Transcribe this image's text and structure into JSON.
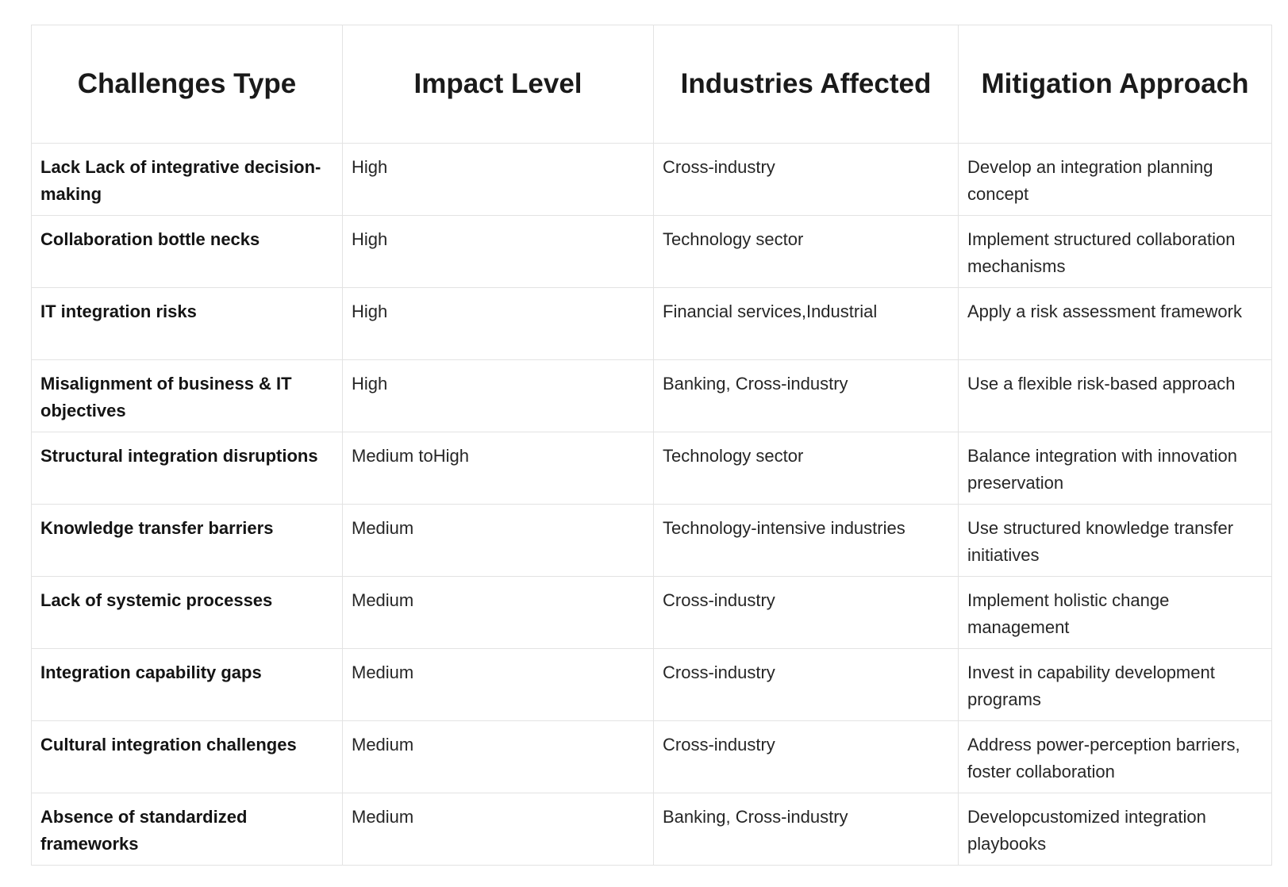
{
  "table": {
    "headers": [
      "Challenges Type",
      "Impact Level",
      "Industries Affected",
      "Mitigation Approach"
    ],
    "rows": [
      [
        "Lack Lack of integrative decision-making",
        "High",
        "Cross-industry",
        "Develop an integration planning concept"
      ],
      [
        "Collaboration bottle necks",
        "High",
        "Technology sector",
        "Implement structured collaboration mechanisms"
      ],
      [
        "IT integration risks",
        "High",
        "Financial services,Industrial",
        "Apply a risk assessment framework"
      ],
      [
        "Misalignment of business & IT objectives",
        "High",
        "Banking, Cross-industry",
        "Use a flexible risk-based approach"
      ],
      [
        "Structural integration disruptions",
        "Medium toHigh",
        "Technology sector",
        "Balance integration with innovation preservation"
      ],
      [
        "Knowledge transfer barriers",
        "Medium",
        "Technology-intensive industries",
        "Use structured knowledge transfer initiatives"
      ],
      [
        "Lack of systemic processes",
        "Medium",
        "Cross-industry",
        "Implement holistic change management"
      ],
      [
        "Integration capability gaps",
        "Medium",
        "Cross-industry",
        "Invest in capability development programs"
      ],
      [
        "Cultural integration challenges",
        "Medium",
        "Cross-industry",
        "Address power-perception barriers, foster collaboration"
      ],
      [
        "Absence of standardized frameworks",
        "Medium",
        "Banking, Cross-industry",
        "Developcustomized integration playbooks"
      ]
    ]
  }
}
